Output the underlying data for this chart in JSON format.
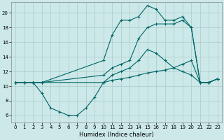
{
  "xlabel": "Humidex (Indice chaleur)",
  "bg_color": "#cce8e8",
  "grid_color": "#aacccc",
  "line_color": "#006666",
  "xlim": [
    -0.5,
    23.5
  ],
  "ylim": [
    5.0,
    21.5
  ],
  "yticks": [
    6,
    8,
    10,
    12,
    14,
    16,
    18,
    20
  ],
  "xticks": [
    0,
    1,
    2,
    3,
    4,
    5,
    6,
    7,
    8,
    9,
    10,
    11,
    12,
    13,
    14,
    15,
    16,
    17,
    18,
    19,
    20,
    21,
    22,
    23
  ],
  "series": [
    {
      "x": [
        0,
        1,
        2,
        3,
        10,
        11,
        12,
        13,
        14,
        15,
        16,
        17,
        18,
        19,
        20,
        21,
        22,
        23
      ],
      "y": [
        10.5,
        10.5,
        10.5,
        10.5,
        10.5,
        10.8,
        11.0,
        11.2,
        11.5,
        11.8,
        12.0,
        12.2,
        12.5,
        13.0,
        13.5,
        10.5,
        10.5,
        11.0
      ]
    },
    {
      "x": [
        0,
        1,
        2,
        3,
        10,
        11,
        12,
        13,
        14,
        15,
        16,
        17,
        18,
        19,
        20,
        21,
        22,
        23
      ],
      "y": [
        10.5,
        10.5,
        10.5,
        10.5,
        11.5,
        12.5,
        13.0,
        13.5,
        16.5,
        18.0,
        18.5,
        18.5,
        18.5,
        19.0,
        18.0,
        10.5,
        10.5,
        11.0
      ]
    },
    {
      "x": [
        0,
        1,
        2,
        3,
        4,
        5,
        6,
        7,
        8,
        9,
        10,
        11,
        12,
        13,
        14,
        15,
        16,
        17,
        18,
        19,
        20,
        21,
        22,
        23
      ],
      "y": [
        10.5,
        10.5,
        10.5,
        9.0,
        7.0,
        6.5,
        6.0,
        6.0,
        7.0,
        8.5,
        10.5,
        11.5,
        12.0,
        12.5,
        13.5,
        15.0,
        14.5,
        13.5,
        12.5,
        12.0,
        11.5,
        10.5,
        10.5,
        11.0
      ]
    },
    {
      "x": [
        0,
        1,
        2,
        3,
        10,
        11,
        12,
        13,
        14,
        15,
        16,
        17,
        18,
        19,
        20,
        21,
        22,
        23
      ],
      "y": [
        10.5,
        10.5,
        10.5,
        10.5,
        13.5,
        17.0,
        19.0,
        19.0,
        19.5,
        21.0,
        20.5,
        19.0,
        19.0,
        19.5,
        18.0,
        10.5,
        10.5,
        11.0
      ]
    }
  ]
}
